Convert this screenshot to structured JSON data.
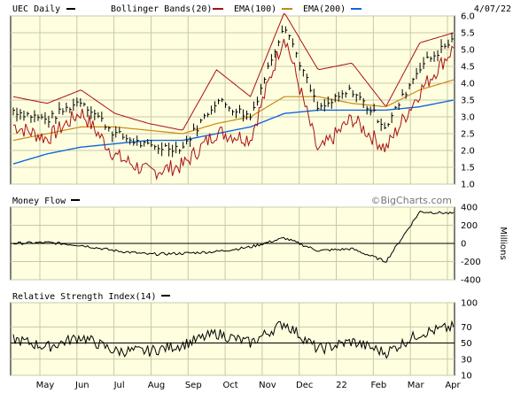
{
  "header": {
    "symbol": "UEC Daily",
    "bollinger": "Bollinger Bands(20)",
    "ema100": "EMA(100)",
    "ema200": "EMA(200)",
    "date": "4/07/22"
  },
  "watermark": "©BigCharts.com",
  "colors": {
    "plot_bg": "#ffffe0",
    "grid": "#c8c8a8",
    "price": "#000000",
    "bollinger": "#aa1111",
    "ema100": "#cc8811",
    "ema200": "#1166dd"
  },
  "panels": [
    {
      "id": "price",
      "title": "",
      "y_ticks": [
        "6.0",
        "5.5",
        "5.0",
        "4.5",
        "4.0",
        "3.5",
        "3.0",
        "2.5",
        "2.0",
        "1.5",
        "1.0"
      ]
    },
    {
      "id": "money_flow",
      "title": "Money Flow",
      "y_ticks": [
        "400",
        "200",
        "0",
        "-200",
        "-400"
      ],
      "y_unit": "Millions"
    },
    {
      "id": "rsi",
      "title": "Relative Strength Index(14)",
      "y_ticks": [
        "100",
        "70",
        "50",
        "30",
        "10"
      ]
    }
  ],
  "x_labels": [
    "May",
    "Jun",
    "Jul",
    "Aug",
    "Sep",
    "Oct",
    "Nov",
    "Dec",
    "22",
    "Feb",
    "Mar",
    "Apr"
  ],
  "chart_data": [
    {
      "type": "line",
      "title": "UEC Daily",
      "ylim": [
        1.0,
        6.0
      ],
      "x": [
        "Apr",
        "May",
        "Jun",
        "Jul",
        "Aug",
        "Sep",
        "Oct",
        "Nov",
        "Nov",
        "Dec",
        "22",
        "Feb",
        "Mar",
        "Apr"
      ],
      "series": [
        {
          "name": "UEC Daily",
          "values": [
            3.2,
            2.9,
            3.5,
            2.5,
            2.1,
            2.1,
            3.5,
            3.0,
            5.8,
            3.2,
            3.8,
            2.7,
            4.5,
            5.3
          ]
        },
        {
          "name": "Bollinger Bands(20)",
          "values": [
            3.6,
            3.4,
            3.8,
            3.1,
            2.8,
            2.6,
            4.4,
            3.6,
            6.1,
            4.4,
            4.6,
            3.3,
            5.2,
            5.5
          ]
        },
        {
          "name": "EMA(100)",
          "values": [
            2.3,
            2.5,
            2.7,
            2.7,
            2.6,
            2.5,
            2.8,
            3.0,
            3.6,
            3.6,
            3.4,
            3.3,
            3.8,
            4.1
          ]
        },
        {
          "name": "EMA(200)",
          "values": [
            1.6,
            1.9,
            2.1,
            2.2,
            2.3,
            2.3,
            2.5,
            2.7,
            3.1,
            3.2,
            3.2,
            3.2,
            3.3,
            3.5
          ]
        }
      ]
    },
    {
      "type": "line",
      "title": "Money Flow",
      "ylabel": "Millions",
      "ylim": [
        -400,
        400
      ],
      "series": [
        {
          "name": "Money Flow",
          "values": [
            0,
            10,
            -20,
            -80,
            -120,
            -110,
            -90,
            -40,
            60,
            -80,
            -60,
            -200,
            350,
            330
          ]
        }
      ]
    },
    {
      "type": "line",
      "title": "Relative Strength Index(14)",
      "ylim": [
        10,
        100
      ],
      "series": [
        {
          "name": "Relative Strength Index(14)",
          "values": [
            55,
            45,
            58,
            40,
            40,
            48,
            62,
            50,
            75,
            42,
            52,
            38,
            62,
            70
          ]
        }
      ]
    }
  ]
}
